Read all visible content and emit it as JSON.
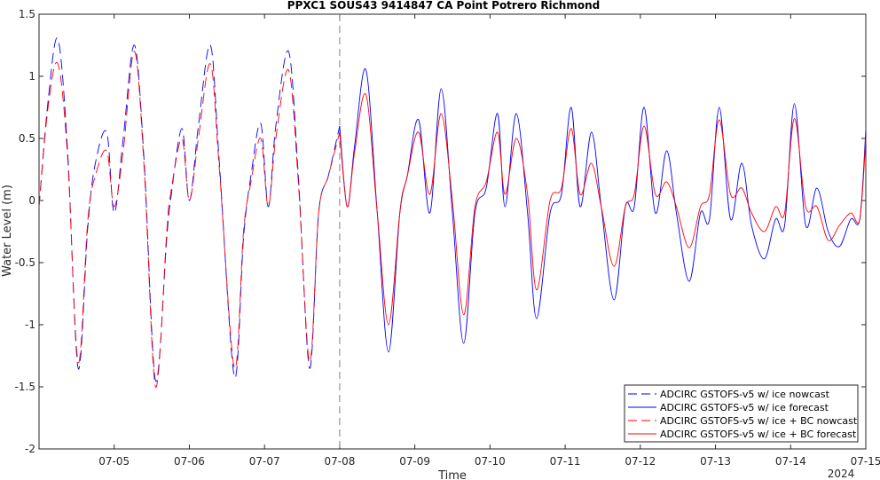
{
  "chart_data": {
    "type": "line",
    "title": "PPXC1 SOUS43 9414847 CA Point Potrero Richmond",
    "xlabel": "Time",
    "ylabel": "Water Level (m)",
    "x_year_label": "2024",
    "xlim": [
      4.0,
      15.0
    ],
    "ylim": [
      -2,
      1.5
    ],
    "yticks": [
      -2,
      -1.5,
      -1,
      -0.5,
      0,
      0.5,
      1,
      1.5
    ],
    "xticks": [
      {
        "value": 5,
        "label": "07-05"
      },
      {
        "value": 6,
        "label": "07-06"
      },
      {
        "value": 7,
        "label": "07-07"
      },
      {
        "value": 8,
        "label": "07-08"
      },
      {
        "value": 9,
        "label": "07-09"
      },
      {
        "value": 10,
        "label": "07-10"
      },
      {
        "value": 11,
        "label": "07-11"
      },
      {
        "value": 12,
        "label": "07-12"
      },
      {
        "value": 13,
        "label": "07-13"
      },
      {
        "value": 14,
        "label": "07-14"
      },
      {
        "value": 15,
        "label": "07-15"
      }
    ],
    "nowcast_forecast_split": 8.0,
    "grid": false,
    "legend_position": "bottom-right",
    "series": [
      {
        "name": "ADCIRC GSTOFS-v5 w/ ice nowcast",
        "color": "#0000ff",
        "dash": true,
        "x": [
          4.0,
          4.12,
          4.25,
          4.38,
          4.52,
          4.65,
          4.75,
          4.9,
          5.0,
          5.12,
          5.27,
          5.4,
          5.55,
          5.7,
          5.75,
          5.9,
          6.0,
          6.12,
          6.28,
          6.4,
          6.6,
          6.72,
          6.82,
          6.95,
          7.05,
          7.15,
          7.32,
          7.45,
          7.6,
          7.72,
          7.85,
          8.0
        ],
        "y": [
          -0.05,
          0.8,
          1.3,
          0.4,
          -1.35,
          -0.2,
          0.3,
          0.55,
          -0.1,
          0.5,
          1.25,
          0.3,
          -1.45,
          -0.3,
          0.0,
          0.58,
          0.0,
          0.6,
          1.25,
          0.3,
          -1.42,
          -0.3,
          0.2,
          0.62,
          -0.05,
          0.6,
          1.2,
          0.2,
          -1.35,
          -0.1,
          0.2,
          0.6
        ]
      },
      {
        "name": "ADCIRC GSTOFS-v5 w/ ice forecast",
        "color": "#0000ff",
        "dash": false,
        "x": [
          8.0,
          8.1,
          8.2,
          8.35,
          8.5,
          8.65,
          8.8,
          8.9,
          9.05,
          9.2,
          9.35,
          9.5,
          9.65,
          9.8,
          9.95,
          10.1,
          10.2,
          10.35,
          10.5,
          10.62,
          10.8,
          10.95,
          11.08,
          11.2,
          11.35,
          11.48,
          11.65,
          11.8,
          11.92,
          12.05,
          12.2,
          12.35,
          12.48,
          12.65,
          12.8,
          12.92,
          13.05,
          13.2,
          13.35,
          13.48,
          13.65,
          13.8,
          13.92,
          14.05,
          14.2,
          14.35,
          14.5,
          14.65,
          14.8,
          14.92,
          15.0
        ],
        "y": [
          0.6,
          -0.05,
          0.45,
          1.05,
          -0.1,
          -1.22,
          -0.1,
          0.2,
          0.65,
          -0.1,
          0.9,
          -0.1,
          -1.15,
          -0.1,
          0.1,
          0.7,
          -0.05,
          0.7,
          -0.1,
          -0.95,
          -0.1,
          0.05,
          0.75,
          -0.05,
          0.55,
          -0.05,
          -0.8,
          -0.05,
          -0.05,
          0.75,
          -0.1,
          0.4,
          -0.1,
          -0.65,
          -0.1,
          -0.15,
          0.75,
          -0.15,
          0.3,
          -0.2,
          -0.47,
          -0.15,
          -0.2,
          0.78,
          -0.2,
          0.1,
          -0.25,
          -0.37,
          -0.15,
          -0.15,
          0.57
        ]
      },
      {
        "name": "ADCIRC GSTOFS-v5 w/ ice + BC nowcast",
        "color": "#ff0000",
        "dash": true,
        "x": [
          4.0,
          4.12,
          4.25,
          4.38,
          4.52,
          4.65,
          4.75,
          4.9,
          5.0,
          5.12,
          5.27,
          5.4,
          5.55,
          5.7,
          5.75,
          5.9,
          6.0,
          6.12,
          6.28,
          6.4,
          6.6,
          6.72,
          6.82,
          6.95,
          7.05,
          7.15,
          7.32,
          7.45,
          7.6,
          7.72,
          7.85,
          8.0
        ],
        "y": [
          -0.05,
          0.75,
          1.1,
          0.35,
          -1.3,
          -0.15,
          0.2,
          0.4,
          -0.05,
          0.4,
          1.2,
          0.25,
          -1.5,
          -0.25,
          0.05,
          0.5,
          0.0,
          0.5,
          1.1,
          0.25,
          -1.35,
          -0.25,
          0.15,
          0.5,
          -0.05,
          0.5,
          1.05,
          0.15,
          -1.3,
          -0.1,
          0.2,
          0.55
        ]
      },
      {
        "name": "ADCIRC GSTOFS-v5 w/ ice + BC forecast",
        "color": "#ff0000",
        "dash": false,
        "x": [
          8.0,
          8.1,
          8.2,
          8.35,
          8.5,
          8.65,
          8.8,
          8.9,
          9.05,
          9.2,
          9.35,
          9.5,
          9.65,
          9.8,
          9.95,
          10.1,
          10.2,
          10.35,
          10.5,
          10.62,
          10.8,
          10.95,
          11.08,
          11.2,
          11.35,
          11.48,
          11.65,
          11.8,
          11.92,
          12.05,
          12.2,
          12.35,
          12.48,
          12.65,
          12.8,
          12.92,
          13.05,
          13.2,
          13.35,
          13.48,
          13.65,
          13.8,
          13.92,
          14.05,
          14.2,
          14.35,
          14.5,
          14.65,
          14.8,
          14.92,
          15.0
        ],
        "y": [
          0.55,
          -0.05,
          0.4,
          0.85,
          -0.1,
          -1.0,
          -0.1,
          0.2,
          0.55,
          0.05,
          0.7,
          0.0,
          -0.92,
          -0.05,
          0.15,
          0.55,
          0.05,
          0.5,
          0.05,
          -0.72,
          0.0,
          0.1,
          0.58,
          0.05,
          0.3,
          -0.05,
          -0.53,
          -0.05,
          0.05,
          0.6,
          0.05,
          0.15,
          -0.05,
          -0.38,
          -0.05,
          0.05,
          0.65,
          0.05,
          0.1,
          -0.1,
          -0.25,
          -0.05,
          -0.1,
          0.66,
          -0.05,
          -0.05,
          -0.32,
          -0.2,
          -0.1,
          -0.15,
          0.5
        ]
      }
    ]
  }
}
